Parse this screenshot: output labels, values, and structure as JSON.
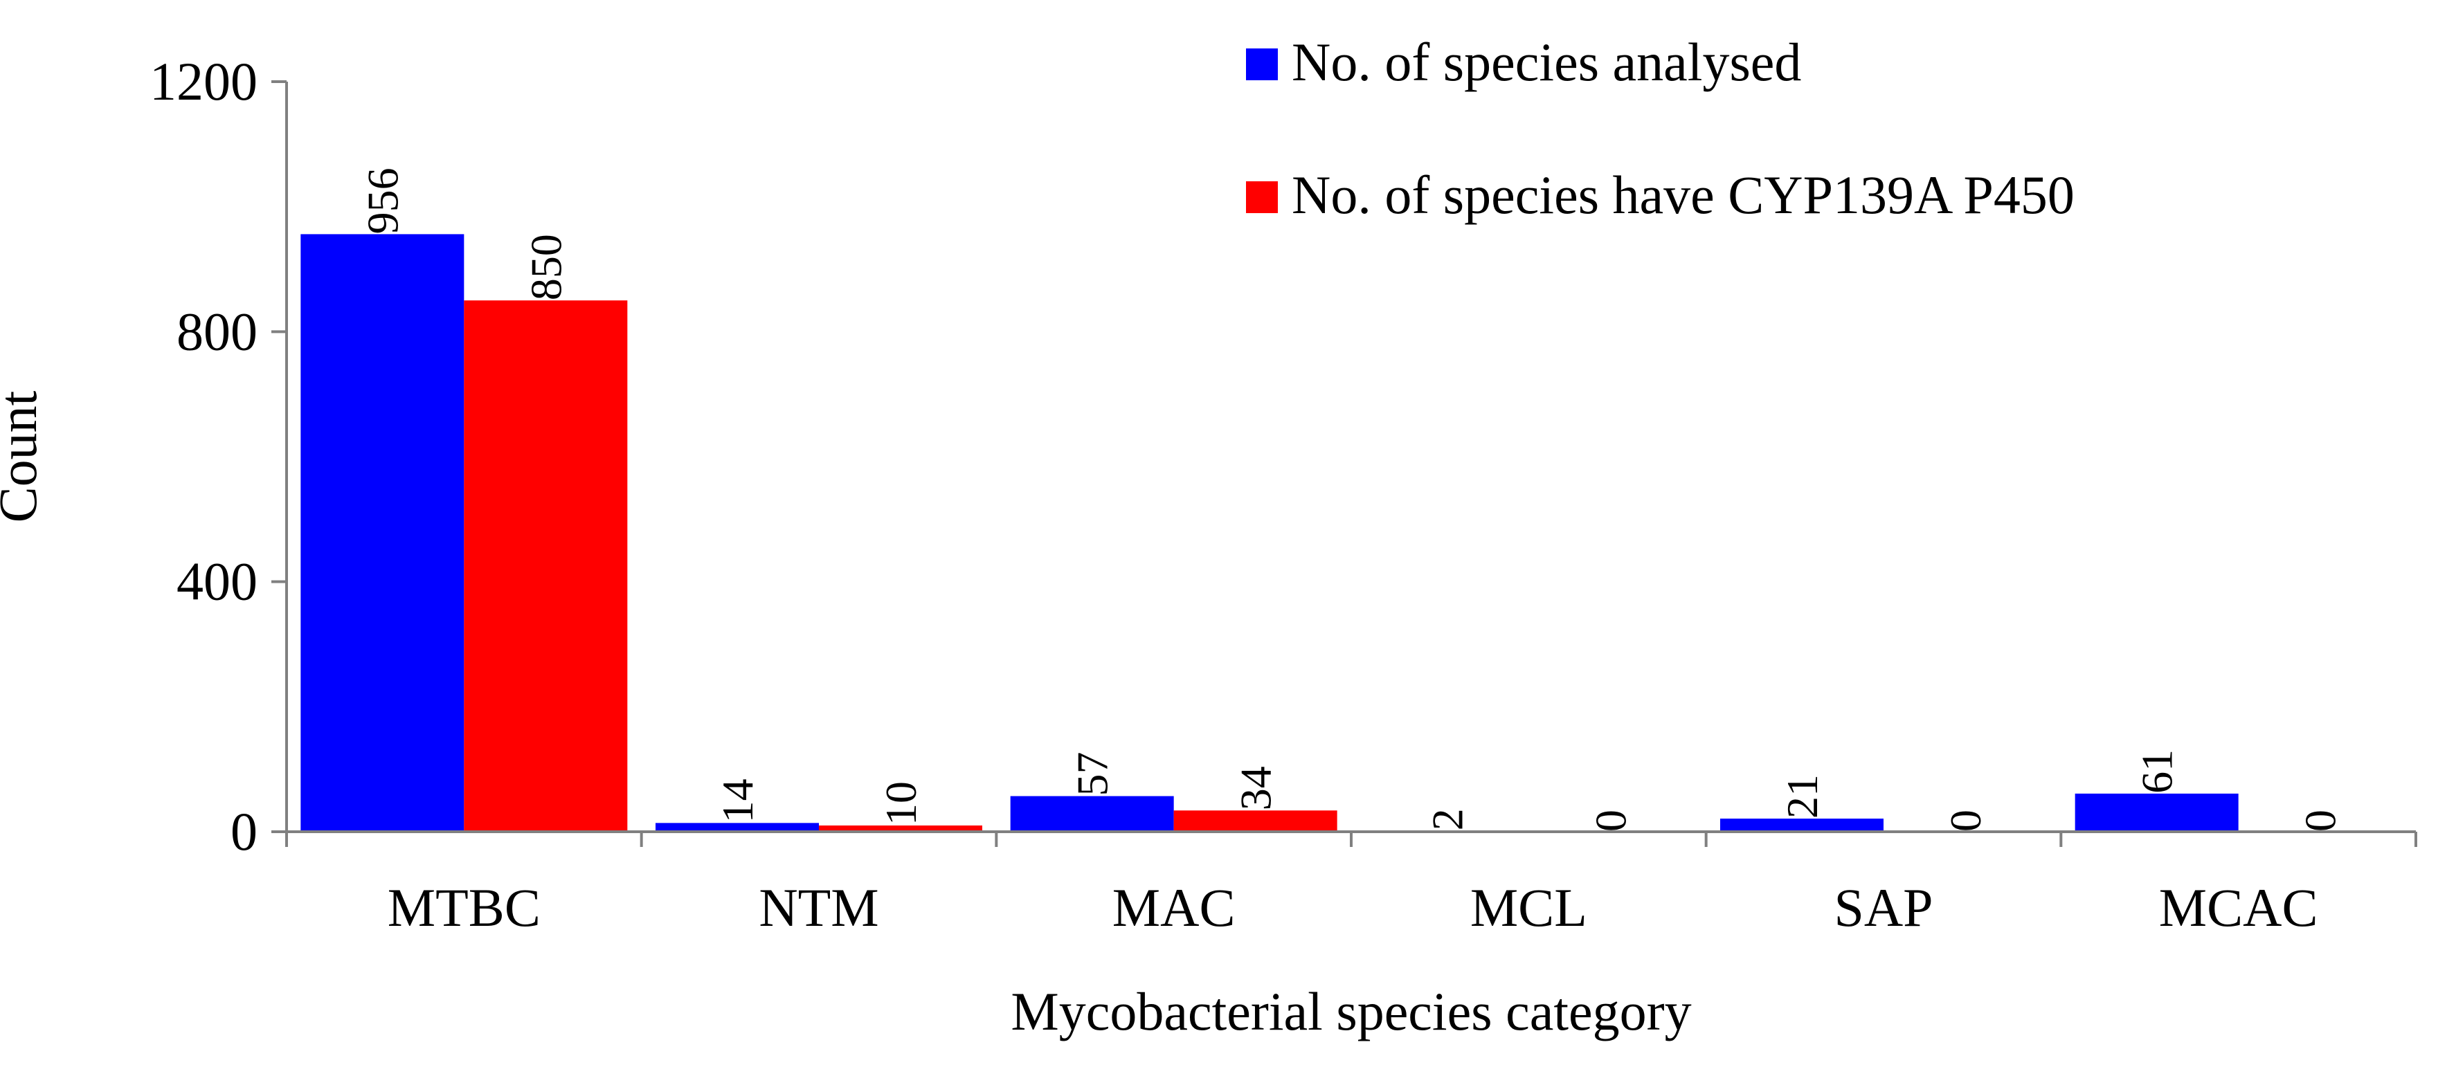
{
  "chart_data": {
    "type": "bar",
    "title": "",
    "xlabel": "Mycobacterial species category",
    "ylabel": "Count",
    "ylim": [
      0,
      1200
    ],
    "yticks": [
      0,
      400,
      800,
      1200
    ],
    "grid": false,
    "legend_position": "top-right",
    "categories": [
      "MTBC",
      "NTM",
      "MAC",
      "MCL",
      "SAP",
      "MCAC"
    ],
    "series": [
      {
        "name": "No. of species analysed",
        "color": "#0000ff",
        "values": [
          956,
          14,
          57,
          2,
          21,
          61
        ]
      },
      {
        "name": "No. of species have CYP139A P450",
        "color": "#ff0000",
        "values": [
          850,
          10,
          34,
          0,
          0,
          0
        ]
      }
    ],
    "data_labels": {
      "orientation": "rotated-vertical",
      "series_0": [
        "956",
        "14",
        "57",
        "2",
        "21",
        "61"
      ],
      "series_1": [
        "850",
        "10",
        "34",
        "0",
        "0",
        "0"
      ]
    }
  }
}
